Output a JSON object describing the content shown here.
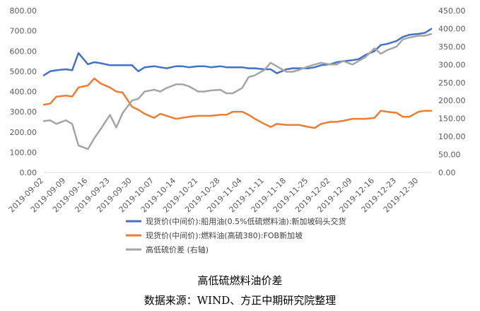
{
  "chart_data": {
    "type": "line",
    "x": [
      "2019-09-02",
      "2019-09-04",
      "2019-09-06",
      "2019-09-09",
      "2019-09-11",
      "2019-09-13",
      "2019-09-16",
      "2019-09-18",
      "2019-09-20",
      "2019-09-23",
      "2019-09-25",
      "2019-09-27",
      "2019-09-30",
      "2019-10-02",
      "2019-10-04",
      "2019-10-07",
      "2019-10-09",
      "2019-10-11",
      "2019-10-14",
      "2019-10-16",
      "2019-10-18",
      "2019-10-21",
      "2019-10-23",
      "2019-10-25",
      "2019-10-28",
      "2019-10-30",
      "2019-11-01",
      "2019-11-04",
      "2019-11-06",
      "2019-11-08",
      "2019-11-11",
      "2019-11-13",
      "2019-11-15",
      "2019-11-18",
      "2019-11-20",
      "2019-11-22",
      "2019-11-25",
      "2019-11-27",
      "2019-11-29",
      "2019-12-02",
      "2019-12-04",
      "2019-12-06",
      "2019-12-09",
      "2019-12-11",
      "2019-12-13",
      "2019-12-16",
      "2019-12-18",
      "2019-12-20",
      "2019-12-23",
      "2019-12-25",
      "2019-12-27",
      "2019-12-30",
      "2020-01-01",
      "2020-01-03"
    ],
    "x_ticks": [
      "2019-09-02",
      "2019-09-09",
      "2019-09-16",
      "2019-09-23",
      "2019-09-30",
      "2019-10-07",
      "2019-10-14",
      "2019-10-21",
      "2019-10-28",
      "2019-11-04",
      "2019-11-11",
      "2019-11-18",
      "2019-11-25",
      "2019-12-02",
      "2019-12-09",
      "2019-12-16",
      "2019-12-23",
      "2019-12-30"
    ],
    "y_left": {
      "ylim": [
        0,
        800
      ],
      "ticks": [
        "0.00",
        "100.00",
        "200.00",
        "300.00",
        "400.00",
        "500.00",
        "600.00",
        "700.00",
        "800.00"
      ]
    },
    "y_right": {
      "ylim": [
        0,
        450
      ],
      "ticks": [
        "0.00",
        "50.00",
        "100.00",
        "150.00",
        "200.00",
        "250.00",
        "300.00",
        "350.00",
        "400.00",
        "450.00"
      ]
    },
    "series": [
      {
        "name": "现货价(中间价):船用油(0.5%低硫燃料油):新加坡码头交货",
        "axis": "left",
        "color": "#4472C4",
        "values": [
          480,
          500,
          505,
          510,
          505,
          590,
          535,
          545,
          540,
          530,
          530,
          530,
          530,
          500,
          520,
          525,
          520,
          515,
          525,
          525,
          520,
          525,
          525,
          520,
          525,
          520,
          520,
          520,
          515,
          515,
          510,
          510,
          490,
          510,
          515,
          515,
          515,
          520,
          530,
          535,
          545,
          550,
          555,
          560,
          580,
          600,
          630,
          635,
          650,
          670,
          680,
          685,
          690,
          710
        ]
      },
      {
        "name": "现货价(中间价):燃料油(高硫380):FOB新加坡",
        "axis": "left",
        "color": "#ED7D31",
        "values": [
          335,
          340,
          375,
          380,
          375,
          420,
          430,
          465,
          440,
          420,
          400,
          395,
          325,
          310,
          290,
          270,
          290,
          280,
          265,
          270,
          275,
          280,
          280,
          280,
          285,
          285,
          300,
          300,
          285,
          265,
          240,
          225,
          240,
          235,
          235,
          235,
          225,
          220,
          240,
          250,
          250,
          255,
          265,
          265,
          265,
          270,
          305,
          300,
          295,
          275,
          275,
          300,
          305,
          305
        ]
      },
      {
        "name": "高低硫价差 (右轴)",
        "axis": "right",
        "color": "#A5A5A5",
        "values": [
          143,
          145,
          135,
          145,
          135,
          75,
          65,
          95,
          120,
          160,
          125,
          165,
          200,
          205,
          225,
          230,
          225,
          235,
          245,
          245,
          240,
          225,
          225,
          228,
          230,
          220,
          220,
          235,
          265,
          270,
          285,
          305,
          295,
          280,
          280,
          285,
          295,
          300,
          305,
          300,
          300,
          310,
          300,
          310,
          320,
          345,
          330,
          340,
          350,
          370,
          375,
          380,
          380,
          385
        ]
      }
    ],
    "legend_position": "bottom",
    "grid": false
  },
  "captions": {
    "title": "高低硫燃料油价差",
    "source": "数据来源：WIND、方正中期研究院整理"
  }
}
